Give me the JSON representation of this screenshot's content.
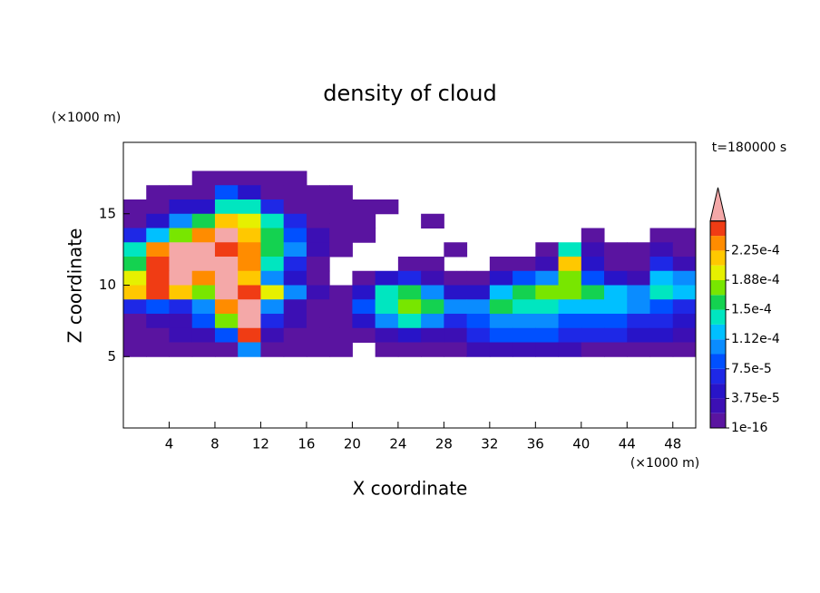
{
  "chart_data": {
    "type": "contour",
    "title": "density of cloud",
    "annotation": "t=180000 s",
    "x_label": "X coordinate",
    "y_label": "Z coordinate",
    "x_unit": "(×1000 m)",
    "y_unit": "(×1000 m)",
    "xlim": [
      0,
      50
    ],
    "ylim": [
      0,
      20
    ],
    "xticks": [
      4,
      8,
      12,
      16,
      20,
      24,
      28,
      32,
      36,
      40,
      44,
      48
    ],
    "yticks": [
      5,
      10,
      15
    ],
    "x": [
      1,
      3,
      5,
      7,
      9,
      11,
      13,
      15,
      17,
      19,
      21,
      23,
      25,
      27,
      29,
      31,
      33,
      35,
      37,
      39,
      41,
      43,
      45,
      47,
      49
    ],
    "y": [
      17.5,
      16.5,
      15.5,
      14.5,
      13.5,
      12.5,
      11.5,
      10.5,
      9.5,
      8.5,
      7.5,
      6.5,
      5.5
    ],
    "z": [
      [
        null,
        null,
        null,
        1e-05,
        1e-05,
        1e-05,
        1e-05,
        1e-05,
        null,
        null,
        null,
        null,
        null,
        null,
        null,
        null,
        null,
        null,
        null,
        null,
        null,
        null,
        null,
        null,
        null
      ],
      [
        null,
        1e-05,
        1e-05,
        1e-05,
        9e-05,
        4e-05,
        1e-05,
        1e-05,
        1e-05,
        1e-05,
        null,
        null,
        null,
        null,
        null,
        null,
        null,
        null,
        null,
        null,
        null,
        null,
        null,
        null,
        null
      ],
      [
        1e-05,
        1e-05,
        4e-05,
        4e-05,
        0.00014,
        0.00014,
        6e-05,
        1e-05,
        1e-05,
        1e-05,
        1e-05,
        1e-05,
        null,
        null,
        null,
        null,
        null,
        null,
        null,
        null,
        null,
        null,
        null,
        null,
        null
      ],
      [
        1e-05,
        4e-05,
        0.0001,
        0.00016,
        0.00022,
        0.0002,
        0.00014,
        6e-05,
        1e-05,
        1e-05,
        1e-05,
        null,
        null,
        1e-05,
        null,
        null,
        null,
        null,
        null,
        null,
        null,
        null,
        null,
        null,
        null
      ],
      [
        6e-05,
        0.00012,
        0.00018,
        0.00024,
        0.0003,
        0.00022,
        0.00016,
        8e-05,
        3e-05,
        1e-05,
        1e-05,
        null,
        null,
        null,
        null,
        null,
        null,
        null,
        null,
        null,
        1e-05,
        null,
        null,
        1e-05,
        1e-05
      ],
      [
        0.00014,
        0.00024,
        0.0003,
        0.0003,
        0.00026,
        0.00024,
        0.00016,
        0.0001,
        3e-05,
        1e-05,
        null,
        null,
        null,
        null,
        1e-05,
        null,
        null,
        null,
        1e-05,
        0.00014,
        3e-05,
        1e-05,
        1e-05,
        3e-05,
        1e-05
      ],
      [
        0.00016,
        0.00026,
        0.0003,
        0.0003,
        0.0003,
        0.00024,
        0.00014,
        6e-05,
        1e-05,
        null,
        null,
        null,
        1e-05,
        1e-05,
        null,
        null,
        1e-05,
        1e-05,
        3e-05,
        0.00022,
        4e-05,
        1e-05,
        1e-05,
        6e-05,
        3e-05
      ],
      [
        0.0002,
        0.00026,
        0.0003,
        0.00024,
        0.0003,
        0.00022,
        0.0001,
        4e-05,
        1e-05,
        null,
        1e-05,
        4e-05,
        6e-05,
        3e-05,
        1e-05,
        1e-05,
        4e-05,
        8e-05,
        0.0001,
        0.00018,
        8e-05,
        4e-05,
        3e-05,
        0.00012,
        0.0001
      ],
      [
        0.00022,
        0.00026,
        0.00022,
        0.00018,
        0.0003,
        0.00026,
        0.0002,
        0.0001,
        2e-05,
        1e-05,
        4e-05,
        0.00014,
        0.00016,
        0.0001,
        4e-05,
        4e-05,
        0.00012,
        0.00016,
        0.00018,
        0.00018,
        0.00016,
        0.00012,
        0.0001,
        0.00014,
        0.00012
      ],
      [
        6e-05,
        8e-05,
        6e-05,
        0.0001,
        0.00024,
        0.0003,
        0.0001,
        3e-05,
        1e-05,
        1e-05,
        8e-05,
        0.00014,
        0.00018,
        0.00016,
        0.0001,
        0.0001,
        0.00016,
        0.00014,
        0.00014,
        0.00012,
        0.00012,
        0.00012,
        0.0001,
        8e-05,
        6e-05
      ],
      [
        1e-05,
        2e-05,
        3e-05,
        8e-05,
        0.00018,
        0.0003,
        6e-05,
        2e-05,
        1e-05,
        1e-05,
        4e-05,
        0.0001,
        0.00014,
        0.0001,
        6e-05,
        8e-05,
        0.0001,
        0.0001,
        0.0001,
        9e-05,
        9e-05,
        8e-05,
        7e-05,
        6e-05,
        4e-05
      ],
      [
        1e-05,
        1e-05,
        2e-05,
        3e-05,
        8e-05,
        0.00026,
        3e-05,
        1e-05,
        1e-05,
        1e-05,
        1e-05,
        3e-05,
        4e-05,
        3e-05,
        2e-05,
        6e-05,
        8e-05,
        8e-05,
        8e-05,
        7e-05,
        6e-05,
        6e-05,
        5e-05,
        4e-05,
        3e-05
      ],
      [
        1e-05,
        1e-05,
        1e-05,
        1e-05,
        1e-05,
        0.0001,
        1e-05,
        1e-05,
        1e-05,
        1e-05,
        null,
        1e-05,
        1e-05,
        1e-05,
        1e-05,
        3e-05,
        3e-05,
        2e-05,
        2e-05,
        2e-05,
        1e-05,
        1e-05,
        1e-05,
        1e-05,
        1e-05
      ]
    ],
    "levels": [
      1e-16,
      1.875e-05,
      3.75e-05,
      5.625e-05,
      7.5e-05,
      9.375e-05,
      0.0001125,
      0.00013125,
      0.00015,
      0.00016875,
      0.0001875,
      0.00020625,
      0.000225,
      0.00024375,
      0.0002625
    ],
    "colors": [
      "#5a14a0",
      "#3c0fb4",
      "#2814c8",
      "#1e28e6",
      "#0050ff",
      "#0a8cff",
      "#00c0ff",
      "#00e6c0",
      "#14d250",
      "#78e600",
      "#e6f000",
      "#ffc800",
      "#ff8c00",
      "#f03c14"
    ],
    "extend_color": "#f4a8a8",
    "colorbar_ticks": [
      {
        "value": 1e-16,
        "label": "1e-16"
      },
      {
        "value": 3.75e-05,
        "label": "3.75e-5"
      },
      {
        "value": 7.5e-05,
        "label": "7.5e-5"
      },
      {
        "value": 0.0001125,
        "label": "1.12e-4"
      },
      {
        "value": 0.00015,
        "label": "1.5e-4"
      },
      {
        "value": 0.0001875,
        "label": "1.88e-4"
      },
      {
        "value": 0.000225,
        "label": "2.25e-4"
      }
    ]
  }
}
